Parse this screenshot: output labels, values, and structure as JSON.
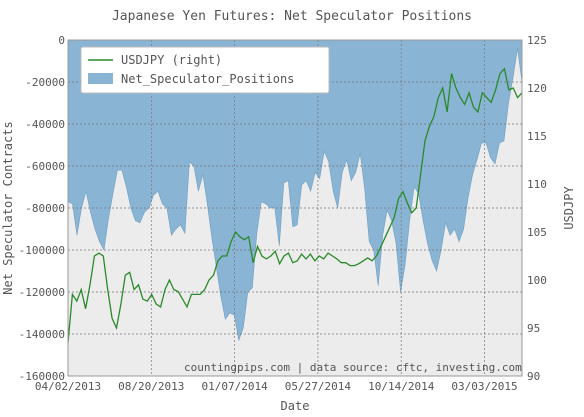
{
  "chart_data": {
    "type": "area",
    "title": "Japanese Yen Futures: Net Speculator Positions",
    "xlabel": "Date",
    "ylabel_left": "Net Speculator Contracts",
    "ylabel_right": "USDJPY",
    "annotation": "countingpips.com | data source: cftc, investing.com",
    "x_ticks": [
      "04/02/2013",
      "08/20/2013",
      "01/07/2014",
      "05/27/2014",
      "10/14/2014",
      "03/03/2015"
    ],
    "x_range": [
      "04/02/2013",
      "05/05/2015"
    ],
    "y_left_ticks": [
      "0",
      "-20000",
      "-40000",
      "-60000",
      "-80000",
      "-100000",
      "-120000",
      "-140000",
      "-160000"
    ],
    "y_left_range": [
      -160000,
      0
    ],
    "y_right_ticks": [
      "125",
      "120",
      "115",
      "110",
      "105",
      "100",
      "95",
      "90"
    ],
    "y_right_range": [
      90,
      125
    ],
    "grid": true,
    "legend_position": "top-left",
    "series": [
      {
        "name": "Net_Speculator_Positions",
        "axis": "left",
        "kind": "area",
        "color": "#8ab4d4",
        "values": [
          -77000,
          -78000,
          -93000,
          -80000,
          -72000,
          -82000,
          -90000,
          -96000,
          -100000,
          -85000,
          -73000,
          -62000,
          -62000,
          -70000,
          -80000,
          -86000,
          -87000,
          -82000,
          -80000,
          -74000,
          -72000,
          -78000,
          -80000,
          -93000,
          -90000,
          -88000,
          -92000,
          -58000,
          -60000,
          -72000,
          -64000,
          -78000,
          -94000,
          -108000,
          -122000,
          -133000,
          -130000,
          -131000,
          -143000,
          -137000,
          -120000,
          -118000,
          -92000,
          -77000,
          -78000,
          -80000,
          -80000,
          -98000,
          -68000,
          -67000,
          -89000,
          -88000,
          -69000,
          -67000,
          -72000,
          -63000,
          -66000,
          -53000,
          -58000,
          -72000,
          -80000,
          -63000,
          -57000,
          -67000,
          -63000,
          -54000,
          -71000,
          -96000,
          -100000,
          -117000,
          -93000,
          -81000,
          -86000,
          -97000,
          -120000,
          -107000,
          -86000,
          -70000,
          -73000,
          -86000,
          -97000,
          -105000,
          -110000,
          -100000,
          -87000,
          -93000,
          -90000,
          -96000,
          -90000,
          -75000,
          -64000,
          -57000,
          -49000,
          -49000,
          -56000,
          -59000,
          -49000,
          -48000,
          -30000,
          -18000,
          -4000,
          -20000
        ],
        "legend": true
      },
      {
        "name": "USDJPY (right)",
        "axis": "right",
        "kind": "line",
        "color": "#2a8a2a",
        "values": [
          93.5,
          98.5,
          97.8,
          99.0,
          97.0,
          99.5,
          102.5,
          102.8,
          102.5,
          99.0,
          96.0,
          95.0,
          97.5,
          100.5,
          100.8,
          99.0,
          99.5,
          98.0,
          97.8,
          98.5,
          97.5,
          97.2,
          99.0,
          100.0,
          99.0,
          98.8,
          98.0,
          97.2,
          98.5,
          98.5,
          98.5,
          99.0,
          100.0,
          100.5,
          102.0,
          102.5,
          102.5,
          104.0,
          105.0,
          104.5,
          104.2,
          104.5,
          101.8,
          103.5,
          102.5,
          102.2,
          102.5,
          103.0,
          101.7,
          102.5,
          102.8,
          101.8,
          102.0,
          102.7,
          102.2,
          102.7,
          102.0,
          102.5,
          102.2,
          102.8,
          102.5,
          102.2,
          101.8,
          101.8,
          101.5,
          101.5,
          101.7,
          102.0,
          102.3,
          102.0,
          102.5,
          103.5,
          104.5,
          105.5,
          106.5,
          108.5,
          109.2,
          108.0,
          107.0,
          107.5,
          111.0,
          114.5,
          116.0,
          117.0,
          119.0,
          120.0,
          117.5,
          121.5,
          120.0,
          119.0,
          118.3,
          119.5,
          118.0,
          117.5,
          119.5,
          119.0,
          118.5,
          119.8,
          121.5,
          122.0,
          119.8,
          120.0,
          119.0,
          119.5
        ]
      }
    ]
  }
}
